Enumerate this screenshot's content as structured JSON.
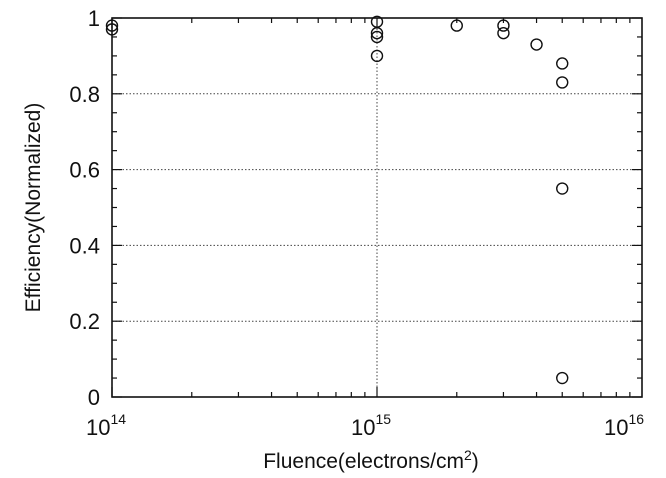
{
  "chart_data": {
    "type": "scatter",
    "xscale": "log",
    "xlim": [
      100000000000000.0,
      1e+16
    ],
    "ylim": [
      0,
      1
    ],
    "xlabel": "Fluence(electrons/cm",
    "xlabel_sup": "2",
    "xlabel_end": ")",
    "ylabel": "Efficiency(Normalized)",
    "grid": true,
    "xticks": [
      {
        "value": 100000000000000.0,
        "base": "10",
        "exp": "14"
      },
      {
        "value": 1000000000000000.0,
        "base": "10",
        "exp": "15"
      },
      {
        "value": 1e+16,
        "base": "10",
        "exp": "16"
      }
    ],
    "yticks": [
      {
        "value": 0,
        "label": "0"
      },
      {
        "value": 0.2,
        "label": "0.2"
      },
      {
        "value": 0.4,
        "label": "0.4"
      },
      {
        "value": 0.6,
        "label": "0.6"
      },
      {
        "value": 0.8,
        "label": "0.8"
      },
      {
        "value": 1,
        "label": "1"
      }
    ],
    "points": [
      {
        "x": 100000000000000.0,
        "y": 0.98
      },
      {
        "x": 100000000000000.0,
        "y": 0.97
      },
      {
        "x": 1000000000000000.0,
        "y": 0.99
      },
      {
        "x": 1000000000000000.0,
        "y": 0.96
      },
      {
        "x": 1000000000000000.0,
        "y": 0.95
      },
      {
        "x": 1000000000000000.0,
        "y": 0.9
      },
      {
        "x": 2000000000000000.0,
        "y": 0.98
      },
      {
        "x": 3000000000000000.0,
        "y": 0.98
      },
      {
        "x": 3000000000000000.0,
        "y": 0.96
      },
      {
        "x": 4000000000000000.0,
        "y": 0.93
      },
      {
        "x": 5000000000000000.0,
        "y": 0.88
      },
      {
        "x": 5000000000000000.0,
        "y": 0.83
      },
      {
        "x": 5000000000000000.0,
        "y": 0.55
      },
      {
        "x": 5000000000000000.0,
        "y": 0.05
      }
    ]
  }
}
